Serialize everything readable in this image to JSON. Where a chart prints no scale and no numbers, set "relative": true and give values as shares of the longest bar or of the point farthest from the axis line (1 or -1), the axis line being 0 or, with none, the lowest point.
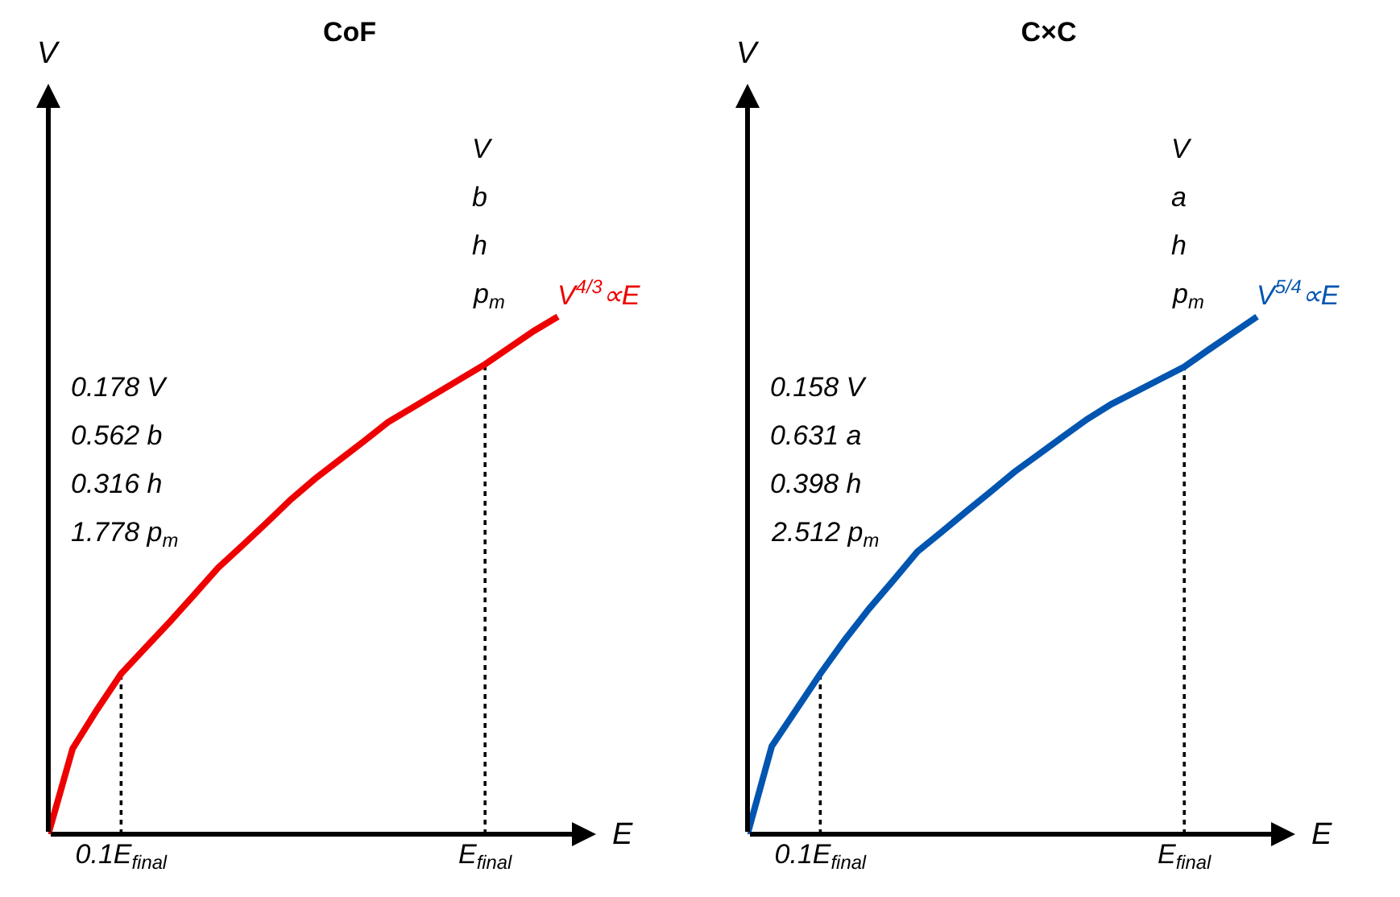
{
  "chart_data": [
    {
      "type": "line",
      "title": "CoF",
      "xlabel": "E",
      "ylabel": "V",
      "relative": true,
      "tick_labels": "x",
      "grid": false,
      "legend": false,
      "marker": "none",
      "categories": [
        null,
        null,
        null,
        "0.1E$_{final}$",
        null,
        null,
        null,
        null,
        null,
        null,
        null,
        null,
        null,
        null,
        null,
        null,
        null,
        null,
        "E$_{final}$",
        null,
        null,
        null
      ],
      "series": [
        {
          "name": "V$^{4/3}$∝E",
          "color": "#ee0000",
          "values": [
            0,
            0.165,
            0.24,
            0.31,
            0.36,
            0.41,
            0.462,
            0.515,
            0.558,
            0.602,
            0.647,
            0.687,
            0.723,
            0.759,
            0.796,
            0.824,
            0.852,
            0.88,
            0.908,
            0.94,
            0.972,
            1
          ]
        }
      ],
      "ref_lines": [
        {
          "axis": "x",
          "value": "0.1E$_{final}$",
          "color": "#000000",
          "line_style": "dotted"
        },
        {
          "axis": "x",
          "value": "E$_{final}$",
          "color": "#000000",
          "line_style": "dotted"
        }
      ],
      "annotations": [
        "V\nb\nh\np$_{m}$",
        "0.178 V\n0.562 b\n0.316 h\n1.778 p$_{m}$"
      ]
    },
    {
      "type": "line",
      "title": "C×C",
      "xlabel": "E",
      "ylabel": "V",
      "relative": true,
      "tick_labels": "x",
      "grid": false,
      "legend": false,
      "marker": "none",
      "categories": [
        null,
        null,
        null,
        "0.1E$_{final}$",
        null,
        null,
        null,
        null,
        null,
        null,
        null,
        null,
        null,
        null,
        null,
        null,
        null,
        null,
        "E$_{final}$",
        null,
        null,
        null
      ],
      "series": [
        {
          "name": "V$^{5/4}$∝E",
          "color": "#0055b0",
          "values": [
            0,
            0.17,
            0.24,
            0.31,
            0.375,
            0.435,
            0.49,
            0.546,
            0.584,
            0.623,
            0.661,
            0.7,
            0.734,
            0.768,
            0.802,
            0.831,
            0.855,
            0.879,
            0.903,
            0.936,
            0.968,
            1
          ]
        }
      ],
      "ref_lines": [
        {
          "axis": "x",
          "value": "0.1E$_{final}$",
          "color": "#000000",
          "line_style": "dotted"
        },
        {
          "axis": "x",
          "value": "E$_{final}$",
          "color": "#000000",
          "line_style": "dotted"
        }
      ],
      "annotations": [
        "V\na\nh\np$_{m}$",
        "0.158 V\n0.631 a\n0.398 h\n2.512 p$_{m}$"
      ]
    }
  ]
}
